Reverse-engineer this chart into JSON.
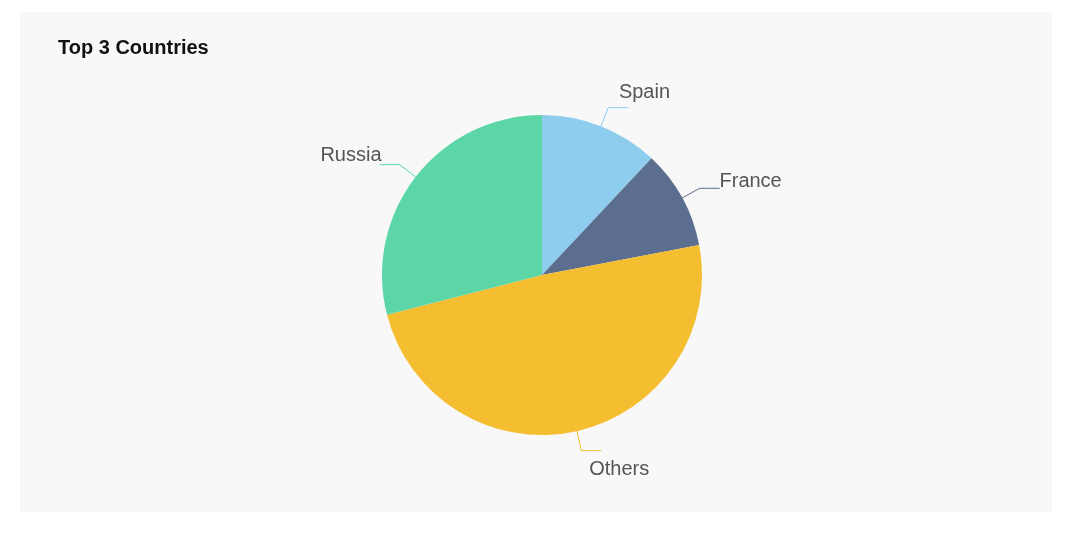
{
  "chart_data": {
    "type": "pie",
    "title": "Top 3 Countries",
    "categories": [
      "Spain",
      "France",
      "Others",
      "Russia"
    ],
    "values": [
      12,
      10,
      49,
      29
    ],
    "colors": [
      "#8fcdee",
      "#5b6e8f",
      "#f5bd30",
      "#5dd6a7"
    ]
  }
}
